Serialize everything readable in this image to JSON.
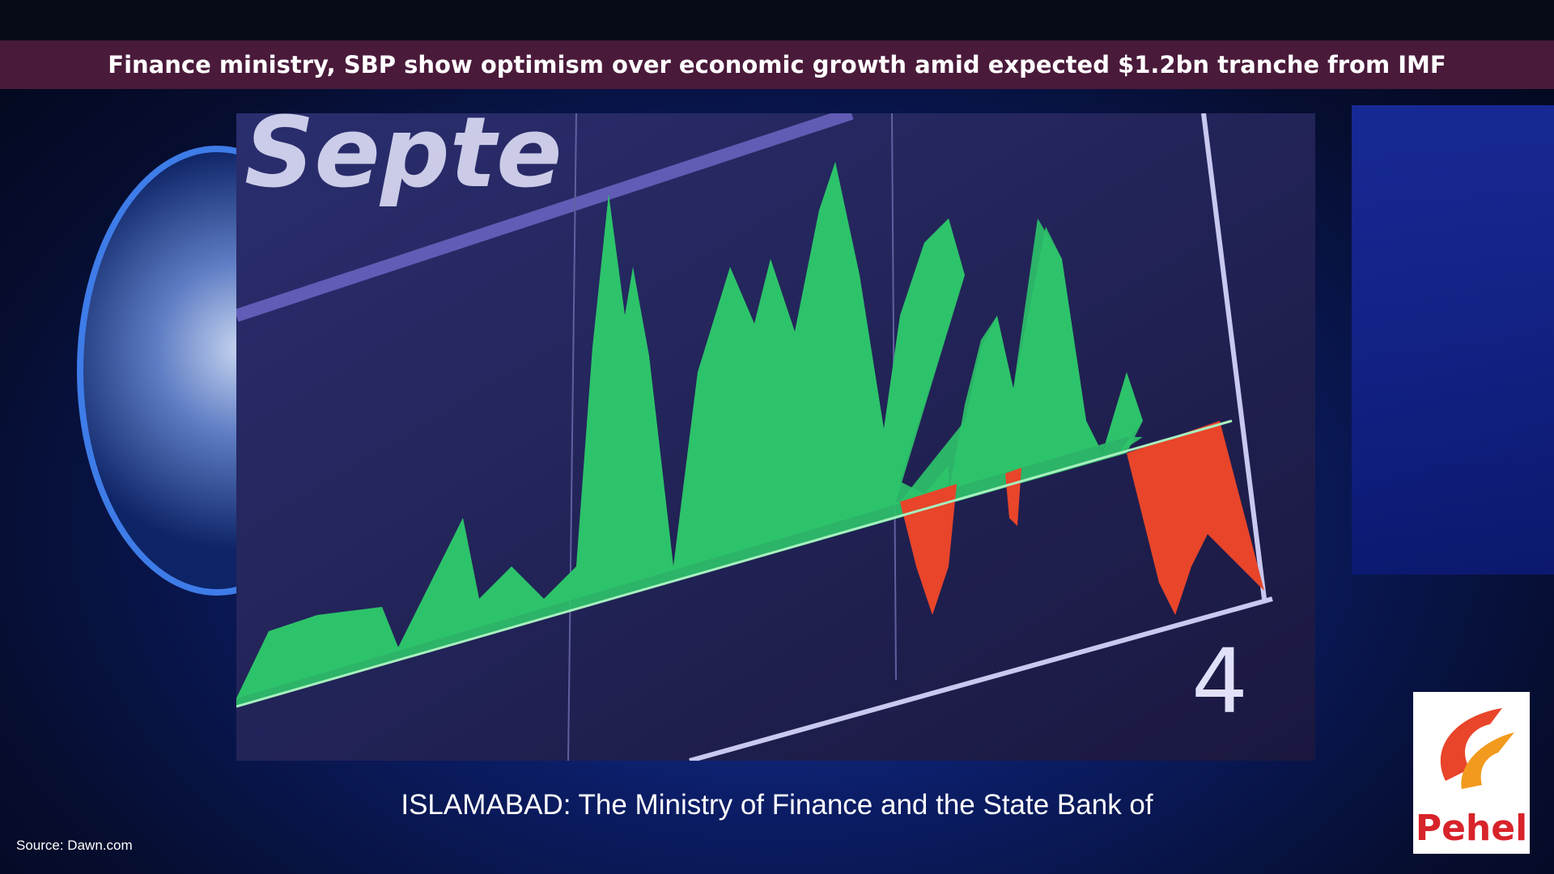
{
  "header": {
    "headline": "Finance ministry, SBP show optimism over economic growth amid expected $1.2bn tranche from IMF"
  },
  "image_text": [
    "Septe",
    "4"
  ],
  "caption": "ISLAMABAD: The Ministry of Finance and the State Bank of",
  "source": "Source: Dawn.com",
  "logo": {
    "text": "Pehel"
  }
}
